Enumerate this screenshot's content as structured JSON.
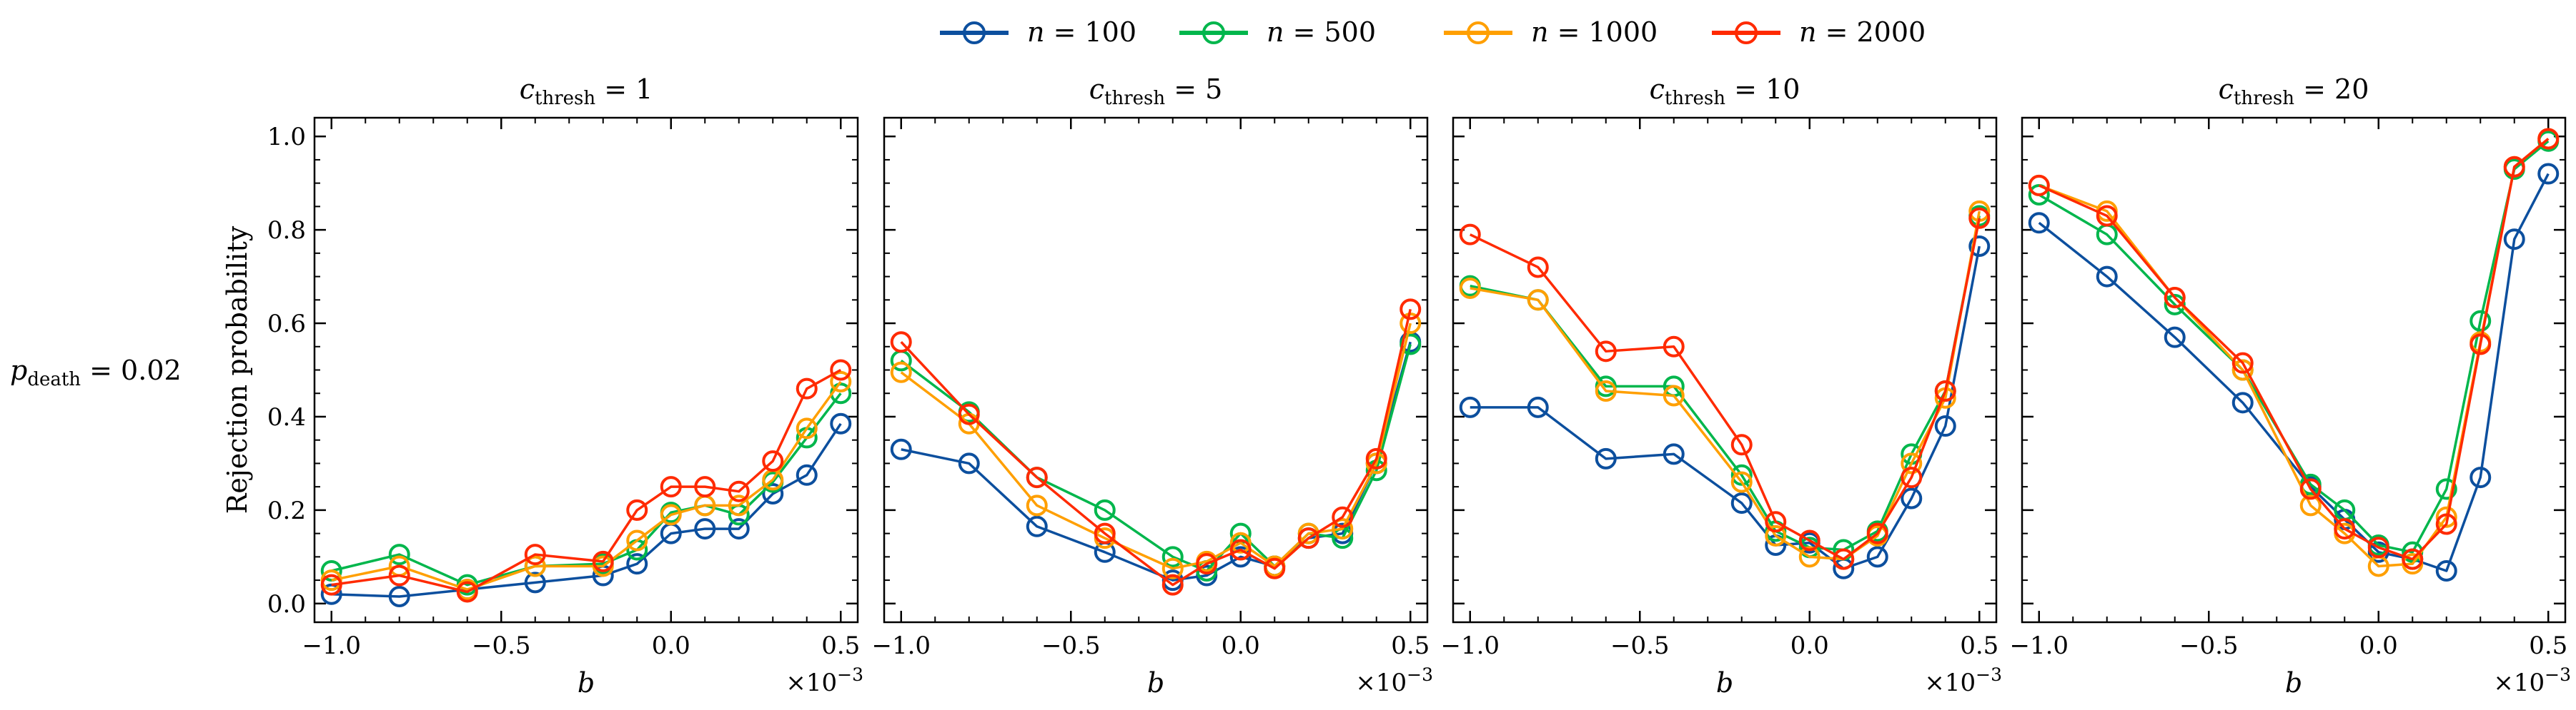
{
  "chart_data": [
    {
      "type": "line",
      "title_main": "c",
      "title_sub": "thresh",
      "title_rest": " = 1",
      "xlabel": "b",
      "ylabel": "Rejection probability",
      "row_label_main": "p",
      "row_label_sub": "death",
      "row_label_rest": " = 0.02",
      "x_scale_label": "×10",
      "x_scale_exp": "−3",
      "x": [
        -1.0,
        -0.8,
        -0.6,
        -0.4,
        -0.2,
        -0.1,
        0.0,
        0.1,
        0.2,
        0.3,
        0.4,
        0.5
      ],
      "xlim": [
        -1.05,
        0.55
      ],
      "ylim": [
        -0.04,
        1.04
      ],
      "xticks": [
        "−1.0",
        "−0.5",
        "0.0",
        "0.5"
      ],
      "xtick_values": [
        -1.0,
        -0.5,
        0.0,
        0.5
      ],
      "yticks": [
        "0.0",
        "0.2",
        "0.4",
        "0.6",
        "0.8",
        "1.0"
      ],
      "ytick_values": [
        0.0,
        0.2,
        0.4,
        0.6,
        0.8,
        1.0
      ],
      "series": [
        {
          "name": "n = 100",
          "values": [
            0.02,
            0.015,
            0.03,
            0.045,
            0.06,
            0.085,
            0.15,
            0.16,
            0.16,
            0.235,
            0.275,
            0.385
          ]
        },
        {
          "name": "n = 500",
          "values": [
            0.07,
            0.105,
            0.04,
            0.08,
            0.085,
            0.115,
            0.195,
            0.21,
            0.19,
            0.26,
            0.355,
            0.45
          ]
        },
        {
          "name": "n = 1000",
          "values": [
            0.05,
            0.08,
            0.03,
            0.08,
            0.08,
            0.135,
            0.19,
            0.21,
            0.21,
            0.265,
            0.375,
            0.475
          ]
        },
        {
          "name": "n = 2000",
          "values": [
            0.04,
            0.06,
            0.025,
            0.105,
            0.09,
            0.2,
            0.25,
            0.25,
            0.24,
            0.305,
            0.46,
            0.5
          ]
        }
      ]
    },
    {
      "type": "line",
      "title_main": "c",
      "title_sub": "thresh",
      "title_rest": " = 5",
      "xlabel": "b",
      "x_scale_label": "×10",
      "x_scale_exp": "−3",
      "x": [
        -1.0,
        -0.8,
        -0.6,
        -0.4,
        -0.2,
        -0.1,
        0.0,
        0.1,
        0.2,
        0.3,
        0.4,
        0.5
      ],
      "xlim": [
        -1.05,
        0.55
      ],
      "ylim": [
        -0.04,
        1.04
      ],
      "xticks": [
        "−1.0",
        "−0.5",
        "0.0",
        "0.5"
      ],
      "xtick_values": [
        -1.0,
        -0.5,
        0.0,
        0.5
      ],
      "ytick_values": [
        0.0,
        0.2,
        0.4,
        0.6,
        0.8,
        1.0
      ],
      "series": [
        {
          "name": "n = 100",
          "values": [
            0.33,
            0.3,
            0.165,
            0.11,
            0.05,
            0.06,
            0.1,
            0.08,
            0.14,
            0.15,
            0.3,
            0.56
          ]
        },
        {
          "name": "n = 500",
          "values": [
            0.52,
            0.41,
            0.27,
            0.2,
            0.1,
            0.07,
            0.15,
            0.08,
            0.15,
            0.14,
            0.285,
            0.555
          ]
        },
        {
          "name": "n = 1000",
          "values": [
            0.495,
            0.385,
            0.21,
            0.14,
            0.075,
            0.09,
            0.13,
            0.08,
            0.15,
            0.16,
            0.3,
            0.6
          ]
        },
        {
          "name": "n = 2000",
          "values": [
            0.56,
            0.405,
            0.27,
            0.15,
            0.04,
            0.085,
            0.115,
            0.075,
            0.14,
            0.185,
            0.31,
            0.63
          ]
        }
      ]
    },
    {
      "type": "line",
      "title_main": "c",
      "title_sub": "thresh",
      "title_rest": " = 10",
      "xlabel": "b",
      "x_scale_label": "×10",
      "x_scale_exp": "−3",
      "x": [
        -1.0,
        -0.8,
        -0.6,
        -0.4,
        -0.2,
        -0.1,
        0.0,
        0.1,
        0.2,
        0.3,
        0.4,
        0.5
      ],
      "xlim": [
        -1.05,
        0.55
      ],
      "ylim": [
        -0.04,
        1.04
      ],
      "xticks": [
        "−1.0",
        "−0.5",
        "0.0",
        "0.5"
      ],
      "xtick_values": [
        -1.0,
        -0.5,
        0.0,
        0.5
      ],
      "ytick_values": [
        0.0,
        0.2,
        0.4,
        0.6,
        0.8,
        1.0
      ],
      "series": [
        {
          "name": "n = 100",
          "values": [
            0.42,
            0.42,
            0.31,
            0.32,
            0.215,
            0.125,
            0.13,
            0.075,
            0.1,
            0.225,
            0.38,
            0.765
          ]
        },
        {
          "name": "n = 500",
          "values": [
            0.68,
            0.65,
            0.465,
            0.465,
            0.275,
            0.155,
            0.12,
            0.115,
            0.155,
            0.32,
            0.455,
            0.83
          ]
        },
        {
          "name": "n = 1000",
          "values": [
            0.675,
            0.65,
            0.455,
            0.445,
            0.26,
            0.145,
            0.1,
            0.095,
            0.145,
            0.3,
            0.44,
            0.84
          ]
        },
        {
          "name": "n = 2000",
          "values": [
            0.79,
            0.72,
            0.54,
            0.55,
            0.34,
            0.175,
            0.135,
            0.095,
            0.15,
            0.27,
            0.455,
            0.825
          ]
        }
      ]
    },
    {
      "type": "line",
      "title_main": "c",
      "title_sub": "thresh",
      "title_rest": " = 20",
      "xlabel": "b",
      "x_scale_label": "×10",
      "x_scale_exp": "−3",
      "x": [
        -1.0,
        -0.8,
        -0.6,
        -0.4,
        -0.2,
        -0.1,
        0.0,
        0.1,
        0.2,
        0.3,
        0.4,
        0.5
      ],
      "xlim": [
        -1.05,
        0.55
      ],
      "ylim": [
        -0.04,
        1.04
      ],
      "xticks": [
        "−1.0",
        "−0.5",
        "0.0",
        "0.5"
      ],
      "xtick_values": [
        -1.0,
        -0.5,
        0.0,
        0.5
      ],
      "ytick_values": [
        0.0,
        0.2,
        0.4,
        0.6,
        0.8,
        1.0
      ],
      "series": [
        {
          "name": "n = 100",
          "values": [
            0.815,
            0.7,
            0.57,
            0.43,
            0.25,
            0.18,
            0.11,
            0.095,
            0.07,
            0.27,
            0.78,
            0.92
          ]
        },
        {
          "name": "n = 500",
          "values": [
            0.875,
            0.79,
            0.64,
            0.5,
            0.255,
            0.2,
            0.125,
            0.11,
            0.245,
            0.605,
            0.93,
            0.99
          ]
        },
        {
          "name": "n = 1000",
          "values": [
            0.895,
            0.84,
            0.655,
            0.5,
            0.21,
            0.15,
            0.08,
            0.085,
            0.185,
            0.56,
            0.935,
            0.995
          ]
        },
        {
          "name": "n = 2000",
          "values": [
            0.895,
            0.83,
            0.655,
            0.515,
            0.245,
            0.16,
            0.12,
            0.095,
            0.17,
            0.555,
            0.935,
            0.995
          ]
        }
      ]
    }
  ],
  "legend": {
    "placement": "top-center",
    "entries": [
      {
        "var": "n",
        "rest": " = 100",
        "color": "#0c4f9e"
      },
      {
        "var": "n",
        "rest": " = 500",
        "color": "#00b64c"
      },
      {
        "var": "n",
        "rest": " = 1000",
        "color": "#ff9f00"
      },
      {
        "var": "n",
        "rest": " = 2000",
        "color": "#ff2a00"
      }
    ]
  }
}
